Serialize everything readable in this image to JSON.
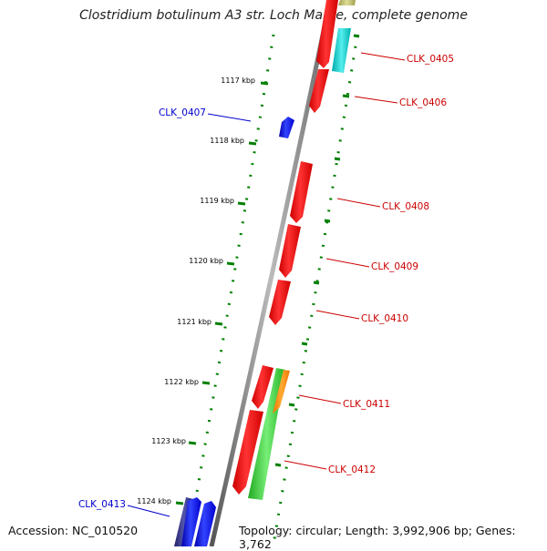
{
  "title": "Clostridium botulinum A3 str. Loch Maree, complete genome",
  "footer": {
    "accession": "Accession: NC_010520",
    "topology": "Topology: circular; Length: 3,992,906 bp; Genes: 3,762"
  },
  "map": {
    "kbp_ticks": [
      "1117 kbp",
      "1118 kbp",
      "1119 kbp",
      "1120 kbp",
      "1121 kbp",
      "1122 kbp",
      "1123 kbp",
      "1124 kbp"
    ],
    "gene_labels": [
      {
        "id": "clk0405",
        "text": "CLK_0405",
        "strand": "forward",
        "color": "#cc0000"
      },
      {
        "id": "clk0406",
        "text": "CLK_0406",
        "strand": "forward",
        "color": "#cc0000"
      },
      {
        "id": "clk0407",
        "text": "CLK_0407",
        "strand": "reverse",
        "color": "#0000cc"
      },
      {
        "id": "clk0408",
        "text": "CLK_0408",
        "strand": "forward",
        "color": "#cc0000"
      },
      {
        "id": "clk0409",
        "text": "CLK_0409",
        "strand": "forward",
        "color": "#cc0000"
      },
      {
        "id": "clk0410",
        "text": "CLK_0410",
        "strand": "forward",
        "color": "#cc0000"
      },
      {
        "id": "clk0411",
        "text": "CLK_0411",
        "strand": "forward",
        "color": "#cc0000"
      },
      {
        "id": "clk0412",
        "text": "CLK_0412",
        "strand": "forward",
        "color": "#cc0000"
      },
      {
        "id": "clk0413",
        "text": "CLK_0413",
        "strand": "reverse",
        "color": "#0000cc"
      }
    ],
    "colors": {
      "forward_cds": "#ff0000",
      "reverse_cds": "#0000ff",
      "backbone": "#808080",
      "tick_marks": "#008000",
      "cyan_feature": "#00cccc",
      "green_feature": "#33cc33",
      "orange_feature": "#ff8800",
      "olive_feature": "#bbbb66",
      "dark_blue_feature": "#333399"
    }
  }
}
